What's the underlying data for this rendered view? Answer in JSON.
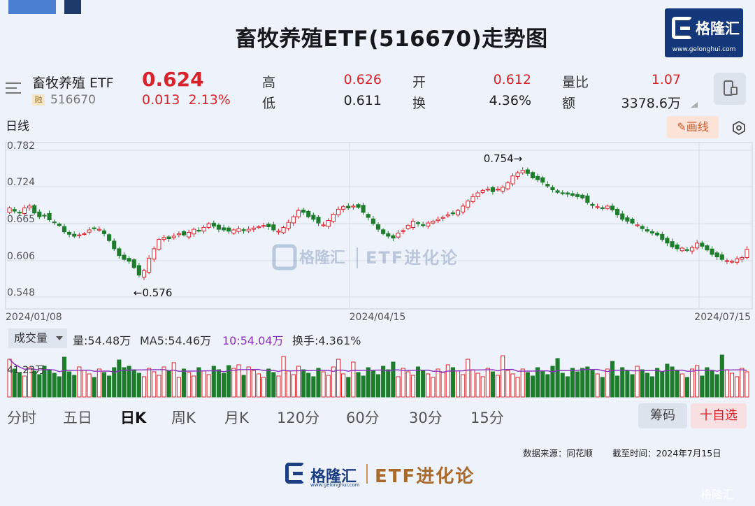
{
  "title": "畜牧养殖ETF(516670)走势图",
  "brand": {
    "name": "格隆汇",
    "url": "www.gelonghui.com",
    "etf_series": "ETF进化论",
    "corner_watermark": "格隆汇",
    "color": "#14387a"
  },
  "quote": {
    "name": "畜牧养殖 ETF",
    "badge": "融",
    "code": "516670",
    "last": "0.624",
    "change": "0.013",
    "change_pct": "2.13%",
    "high_label": "高",
    "high": "0.626",
    "low_label": "低",
    "low": "0.611",
    "open_label": "开",
    "open": "0.612",
    "turnover_label": "换",
    "turnover": "4.36%",
    "vol_ratio_label": "量比",
    "vol_ratio": "1.07",
    "amount_label": "额",
    "amount": "3378.6万"
  },
  "toolbar": {
    "daily_label": "日线",
    "draw_label": "画线"
  },
  "volume_panel": {
    "selector": "成交量",
    "vol": "量:54.48万",
    "ma5": "MA5:54.46万",
    "ma10": "10:54.04万",
    "turnover": "换手:4.361%",
    "axis_label": "41.23万"
  },
  "period_tabs": [
    "分时",
    "五日",
    "日K",
    "周K",
    "月K",
    "120分",
    "60分",
    "30分",
    "15分"
  ],
  "buttons": {
    "chips": "筹码",
    "favorite": "十自选"
  },
  "footer": {
    "source": "数据来源：同花顺",
    "cutoff": "截至时间：2024年7月15日"
  },
  "colors": {
    "up": "#d8232a",
    "down": "#1e7d2c",
    "ma": "#8b2fc0",
    "accent": "#d8232a"
  },
  "chart_data": {
    "type": "candlestick",
    "title": "畜牧养殖ETF(516670)走势图",
    "y_ticks": [
      "0.782",
      "0.724",
      "0.665",
      "0.606",
      "0.548"
    ],
    "ylim": [
      0.548,
      0.782
    ],
    "x_ticks": [
      "2024/01/08",
      "2024/04/15",
      "2024/07/15"
    ],
    "annotations": [
      {
        "text": "0.754→",
        "value": 0.754,
        "index": 103
      },
      {
        "text": "←0.576",
        "value": 0.576,
        "index": 26
      }
    ],
    "closes": [
      0.69,
      0.685,
      0.682,
      0.69,
      0.693,
      0.682,
      0.676,
      0.678,
      0.671,
      0.667,
      0.662,
      0.652,
      0.648,
      0.645,
      0.647,
      0.649,
      0.655,
      0.658,
      0.656,
      0.649,
      0.638,
      0.625,
      0.614,
      0.608,
      0.605,
      0.595,
      0.583,
      0.59,
      0.61,
      0.625,
      0.64,
      0.643,
      0.641,
      0.645,
      0.649,
      0.647,
      0.651,
      0.656,
      0.654,
      0.659,
      0.665,
      0.661,
      0.656,
      0.655,
      0.653,
      0.655,
      0.657,
      0.654,
      0.656,
      0.658,
      0.66,
      0.662,
      0.66,
      0.655,
      0.653,
      0.659,
      0.667,
      0.676,
      0.686,
      0.683,
      0.676,
      0.672,
      0.666,
      0.663,
      0.67,
      0.68,
      0.688,
      0.692,
      0.69,
      0.693,
      0.691,
      0.683,
      0.675,
      0.665,
      0.656,
      0.649,
      0.645,
      0.642,
      0.65,
      0.654,
      0.662,
      0.669,
      0.665,
      0.662,
      0.666,
      0.669,
      0.672,
      0.675,
      0.679,
      0.682,
      0.686,
      0.693,
      0.701,
      0.708,
      0.714,
      0.718,
      0.72,
      0.716,
      0.72,
      0.723,
      0.73,
      0.741,
      0.746,
      0.75,
      0.745,
      0.738,
      0.735,
      0.731,
      0.725,
      0.719,
      0.715,
      0.714,
      0.712,
      0.71,
      0.708,
      0.706,
      0.699,
      0.694,
      0.692,
      0.69,
      0.693,
      0.687,
      0.679,
      0.672,
      0.669,
      0.666,
      0.663,
      0.657,
      0.653,
      0.65,
      0.647,
      0.64,
      0.634,
      0.628,
      0.625,
      0.626,
      0.623,
      0.627,
      0.634,
      0.629,
      0.623,
      0.616,
      0.612,
      0.608,
      0.606,
      0.605,
      0.609,
      0.611,
      0.624
    ],
    "volume_ylabel": "41.23万"
  }
}
